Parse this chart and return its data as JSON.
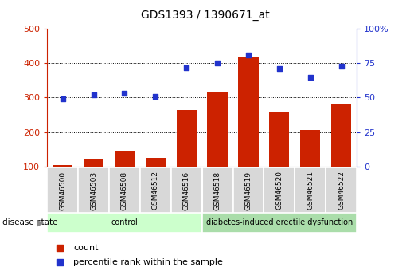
{
  "title": "GDS1393 / 1390671_at",
  "samples": [
    "GSM46500",
    "GSM46503",
    "GSM46508",
    "GSM46512",
    "GSM46516",
    "GSM46518",
    "GSM46519",
    "GSM46520",
    "GSM46521",
    "GSM46522"
  ],
  "bar_values": [
    105,
    122,
    143,
    125,
    265,
    315,
    420,
    260,
    207,
    283
  ],
  "percentile_values": [
    49,
    52,
    53,
    51,
    72,
    75,
    81,
    71,
    65,
    73
  ],
  "bar_color": "#cc2200",
  "dot_color": "#2233cc",
  "groups": [
    {
      "label": "control",
      "start": 0,
      "end": 5,
      "color": "#ccffcc"
    },
    {
      "label": "diabetes-induced erectile dysfunction",
      "start": 5,
      "end": 10,
      "color": "#aaddaa"
    }
  ],
  "ylim_left": [
    100,
    500
  ],
  "ylim_right": [
    0,
    100
  ],
  "yticks_left": [
    100,
    200,
    300,
    400,
    500
  ],
  "yticks_right": [
    0,
    25,
    50,
    75,
    100
  ],
  "left_axis_color": "#cc2200",
  "right_axis_color": "#2233cc",
  "disease_state_label": "disease state",
  "legend_count": "count",
  "legend_percentile": "percentile rank within the sample",
  "sample_box_color": "#d8d8d8",
  "grid_color": "#000000"
}
